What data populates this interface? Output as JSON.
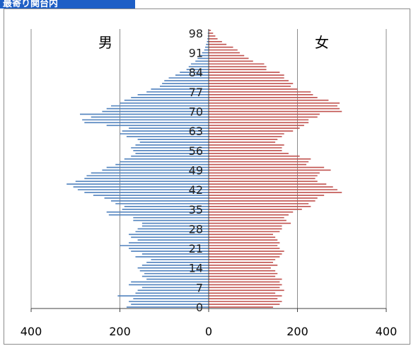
{
  "title_tab": "最寄り関台内",
  "chart_data": {
    "type": "bar",
    "orientation": "horizontal-population-pyramid",
    "x_ticks": [
      "400",
      "200",
      "0",
      "200",
      "400"
    ],
    "y_ticks": [
      "0",
      "7",
      "14",
      "21",
      "28",
      "35",
      "42",
      "49",
      "56",
      "63",
      "70",
      "77",
      "84",
      "91",
      "98"
    ],
    "xlim": [
      -400,
      400
    ],
    "ylim": [
      0,
      100
    ],
    "grid": "vertical",
    "label_left": "男",
    "label_right": "女",
    "colors": {
      "male": "#4f81bd",
      "female": "#c0504d",
      "grid": "#8c8c8c",
      "axis": "#404040"
    },
    "series": [
      {
        "side": "left",
        "values": [
          185,
          175,
          180,
          170,
          205,
          165,
          160,
          150,
          180,
          175,
          140,
          150,
          145,
          155,
          160,
          150,
          140,
          130,
          165,
          150,
          175,
          180,
          200,
          180,
          160,
          175,
          180,
          165,
          160,
          150,
          150,
          170,
          170,
          225,
          230,
          195,
          190,
          210,
          220,
          235,
          260,
          280,
          295,
          305,
          320,
          300,
          280,
          275,
          265,
          240,
          230,
          210,
          200,
          190,
          175,
          165,
          170,
          175,
          165,
          155,
          160,
          185,
          200,
          195,
          180,
          230,
          280,
          285,
          265,
          290,
          240,
          230,
          220,
          200,
          190,
          175,
          160,
          140,
          130,
          110,
          105,
          100,
          90,
          75,
          65,
          50,
          45,
          40,
          30,
          25,
          20,
          15,
          10,
          8,
          6,
          4,
          3,
          2,
          2,
          1
        ]
      },
      {
        "side": "right",
        "values": [
          145,
          160,
          165,
          155,
          165,
          150,
          170,
          160,
          165,
          160,
          165,
          150,
          155,
          150,
          140,
          155,
          145,
          150,
          160,
          165,
          170,
          160,
          155,
          160,
          155,
          150,
          145,
          160,
          165,
          165,
          185,
          175,
          170,
          180,
          190,
          210,
          230,
          225,
          240,
          245,
          260,
          300,
          290,
          280,
          265,
          245,
          240,
          245,
          250,
          275,
          260,
          220,
          225,
          230,
          205,
          180,
          165,
          165,
          170,
          150,
          155,
          165,
          170,
          190,
          205,
          215,
          225,
          225,
          245,
          250,
          300,
          295,
          290,
          295,
          270,
          245,
          235,
          230,
          200,
          185,
          190,
          180,
          170,
          170,
          160,
          130,
          130,
          125,
          100,
          90,
          80,
          70,
          65,
          55,
          40,
          30,
          20,
          15,
          10,
          5
        ]
      }
    ]
  }
}
